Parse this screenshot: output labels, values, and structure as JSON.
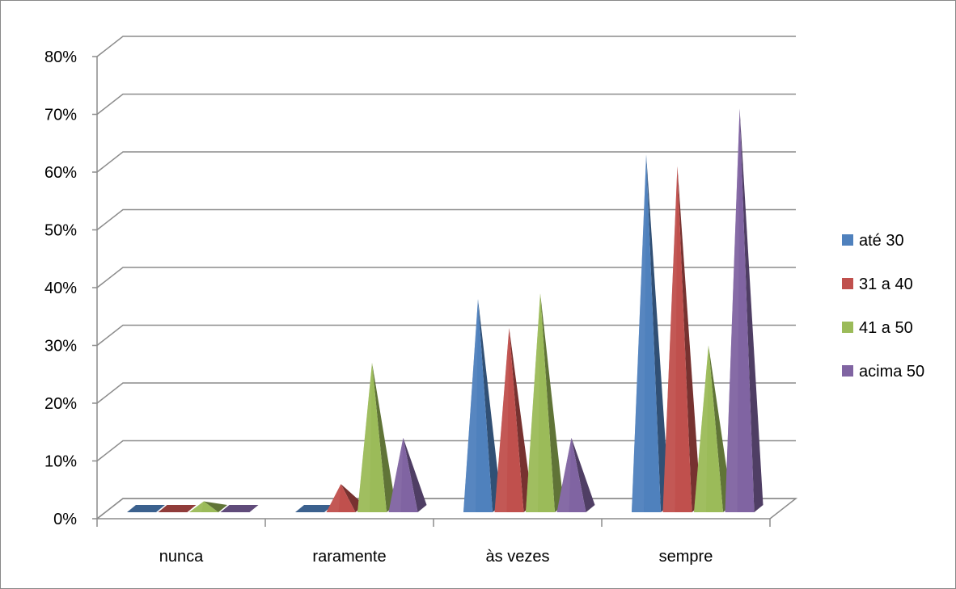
{
  "chart_data": {
    "type": "bar",
    "title": "",
    "xlabel": "",
    "ylabel": "",
    "categories": [
      "nunca",
      "raramente",
      "às vezes",
      "sempre"
    ],
    "y_ticks": [
      "0%",
      "10%",
      "20%",
      "30%",
      "40%",
      "50%",
      "60%",
      "70%",
      "80%"
    ],
    "ylim": [
      0,
      0.8
    ],
    "grid": true,
    "legend_position": "right",
    "series": [
      {
        "name": "até 30",
        "color": "#4F81BD",
        "values": [
          0,
          0,
          0.38,
          0.63
        ]
      },
      {
        "name": "31  a 40",
        "color": "#C0504D",
        "values": [
          0,
          0.06,
          0.33,
          0.61
        ]
      },
      {
        "name": "41 a 50",
        "color": "#9BBB59",
        "values": [
          0.03,
          0.27,
          0.39,
          0.3
        ]
      },
      {
        "name": "acima 50",
        "color": "#8064A2",
        "values": [
          0,
          0.14,
          0.14,
          0.71
        ]
      }
    ]
  }
}
